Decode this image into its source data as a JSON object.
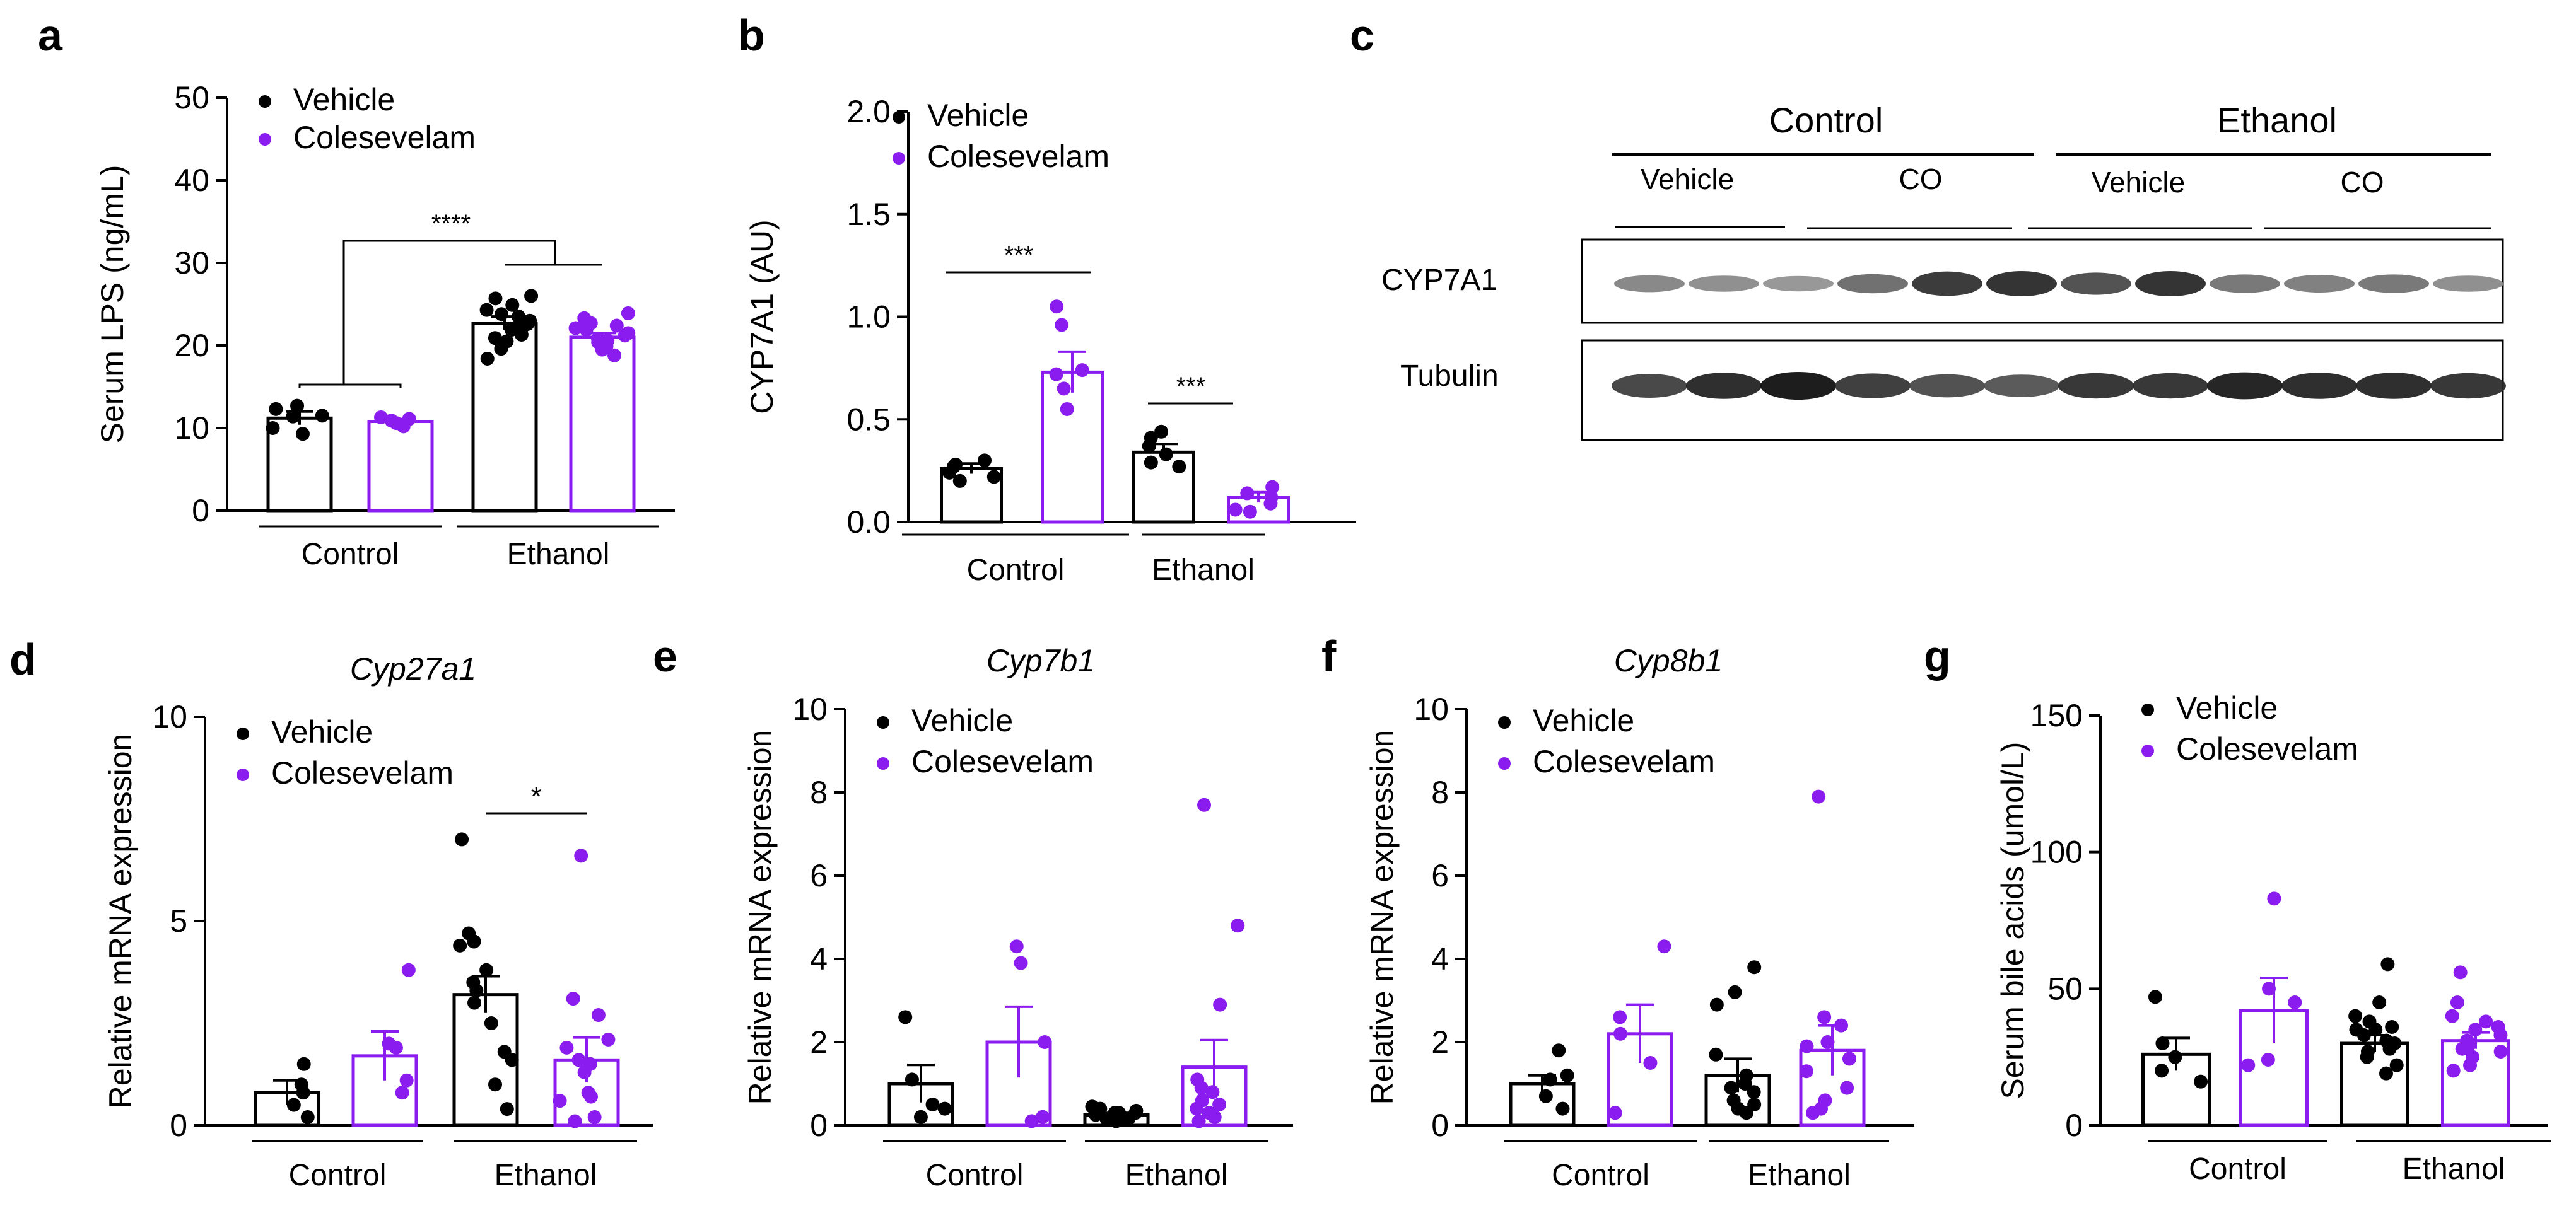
{
  "colors": {
    "vehicle": "#000000",
    "colesevelam": "#8b1cf0",
    "axis": "#000000"
  },
  "legend": {
    "vehicle": "Vehicle",
    "colesevelam": "Colesevelam"
  },
  "panel_letters": {
    "a": "a",
    "b": "b",
    "c": "c",
    "d": "d",
    "e": "e",
    "f": "f",
    "g": "g"
  },
  "chart_data": [
    {
      "panel": "a",
      "type": "bar",
      "title": "",
      "ylabel": "Serum LPS (ng/mL)",
      "ylim": [
        0,
        50
      ],
      "yticks": [
        "0",
        "10",
        "20",
        "30",
        "40",
        "50"
      ],
      "groups": [
        "Control",
        "Ethanol"
      ],
      "series": [
        {
          "name": "Vehicle",
          "values": [
            11.2,
            22.7
          ],
          "sem": [
            0.8,
            0.8
          ],
          "points": [
            [
              10.0,
              11.5,
              12.3,
              9.3,
              11.4,
              12.7
            ],
            [
              21.9,
              24.3,
              25.7,
              20.5,
              23.0,
              22.1,
              18.4,
              26.0,
              21.3,
              23.8,
              22.6,
              19.6,
              24.9,
              20.9,
              23.5
            ]
          ]
        },
        {
          "name": "Colesevelam",
          "values": [
            10.8,
            21.0
          ],
          "sem": [
            0.3,
            0.5
          ],
          "points": [
            [
              10.2,
              11.1,
              10.6,
              11.3,
              10.9
            ],
            [
              19.5,
              22.1,
              23.3,
              20.4,
              21.5,
              18.8,
              22.7,
              20.8,
              21.9,
              19.9,
              23.9,
              21.2,
              20.2,
              22.4,
              20.6
            ]
          ]
        }
      ],
      "significance": {
        "label": "****",
        "compare": "Control vs Ethanol"
      }
    },
    {
      "panel": "b",
      "type": "bar",
      "title": "",
      "ylabel": "CYP7A1 (AU)",
      "ylim": [
        0,
        2.0
      ],
      "yticks": [
        "0.0",
        "0.5",
        "1.0",
        "1.5",
        "2.0"
      ],
      "groups": [
        "Control",
        "Ethanol"
      ],
      "series": [
        {
          "name": "Vehicle",
          "values": [
            0.26,
            0.34
          ],
          "sem": [
            0.025,
            0.04
          ],
          "points": [
            [
              0.22,
              0.28,
              0.24,
              0.3,
              0.2,
              0.27
            ],
            [
              0.29,
              0.44,
              0.37,
              0.33,
              0.41,
              0.27
            ]
          ]
        },
        {
          "name": "Colesevelam",
          "values": [
            0.73,
            0.12
          ],
          "sem": [
            0.1,
            0.025
          ],
          "points": [
            [
              1.05,
              0.96,
              0.72,
              0.55,
              0.65,
              0.74
            ],
            [
              0.14,
              0.05,
              0.12,
              0.09,
              0.17,
              0.06
            ]
          ]
        }
      ],
      "significance": [
        {
          "label": "***",
          "group": "Control"
        },
        {
          "label": "***",
          "group": "Ethanol"
        }
      ]
    },
    {
      "panel": "d",
      "type": "bar",
      "title": "Cyp27a1",
      "ylabel": "Relative mRNA expression",
      "ylim": [
        0,
        10
      ],
      "yticks": [
        "0",
        "5",
        "10"
      ],
      "groups": [
        "Control",
        "Ethanol"
      ],
      "series": [
        {
          "name": "Vehicle",
          "values": [
            0.8,
            3.2
          ],
          "sem": [
            0.3,
            0.45
          ],
          "points": [
            [
              1.5,
              0.8,
              0.2,
              1.0,
              0.5
            ],
            [
              7.0,
              4.5,
              1.6,
              3.8,
              4.4,
              1.0,
              4.7,
              2.5,
              0.4,
              3.5,
              3.0,
              1.8,
              3.3,
              4.5
            ]
          ]
        },
        {
          "name": "Colesevelam",
          "values": [
            1.7,
            1.6
          ],
          "sem": [
            0.6,
            0.55
          ],
          "points": [
            [
              3.8,
              1.1,
              1.9,
              2.0,
              0.8
            ],
            [
              6.6,
              3.1,
              2.7,
              1.9,
              0.6,
              1.6,
              0.1,
              2.1,
              0.8,
              1.3,
              0.2,
              0.7,
              1.5
            ]
          ]
        }
      ],
      "significance": {
        "label": "*",
        "group": "Ethanol"
      }
    },
    {
      "panel": "e",
      "type": "bar",
      "title": "Cyp7b1",
      "ylabel": "Relative mRNA expression",
      "ylim": [
        0,
        10
      ],
      "yticks": [
        "0",
        "2",
        "4",
        "6",
        "8",
        "10"
      ],
      "groups": [
        "Control",
        "Ethanol"
      ],
      "series": [
        {
          "name": "Vehicle",
          "values": [
            1.0,
            0.25
          ],
          "sem": [
            0.45,
            0.05
          ],
          "points": [
            [
              2.6,
              0.5,
              1.1,
              0.2,
              0.4
            ],
            [
              0.35,
              0.2,
              0.3,
              0.45,
              0.15,
              0.25,
              0.1,
              0.3,
              0.4,
              0.2,
              0.15,
              0.3
            ]
          ]
        },
        {
          "name": "Colesevelam",
          "values": [
            2.0,
            1.4
          ],
          "sem": [
            0.85,
            0.65
          ],
          "points": [
            [
              4.3,
              3.9,
              0.2,
              2.0,
              0.1
            ],
            [
              7.7,
              4.8,
              2.9,
              0.9,
              0.5,
              0.3,
              1.1,
              0.2,
              0.4,
              0.1,
              0.6,
              0.8
            ]
          ]
        }
      ]
    },
    {
      "panel": "f",
      "type": "bar",
      "title": "Cyp8b1",
      "ylabel": "Relative mRNA expression",
      "ylim": [
        0,
        10
      ],
      "yticks": [
        "0",
        "2",
        "4",
        "6",
        "8",
        "10"
      ],
      "groups": [
        "Control",
        "Ethanol"
      ],
      "series": [
        {
          "name": "Vehicle",
          "values": [
            1.0,
            1.2
          ],
          "sem": [
            0.2,
            0.4
          ],
          "points": [
            [
              1.8,
              1.1,
              0.4,
              1.2,
              0.7
            ],
            [
              3.8,
              3.2,
              2.9,
              1.0,
              0.5,
              1.7,
              0.6,
              0.3,
              1.2,
              0.9,
              0.4,
              0.8
            ]
          ]
        },
        {
          "name": "Colesevelam",
          "values": [
            2.2,
            1.8
          ],
          "sem": [
            0.7,
            0.6
          ],
          "points": [
            [
              4.3,
              2.2,
              0.3,
              2.6,
              1.5
            ],
            [
              7.9,
              2.6,
              2.4,
              1.9,
              0.9,
              0.6,
              1.6,
              0.4,
              1.3,
              2.0,
              0.3
            ]
          ]
        }
      ]
    },
    {
      "panel": "g",
      "type": "bar",
      "title": "",
      "ylabel": "Serum bile acids (umol/L)",
      "ylim": [
        0,
        150
      ],
      "yticks": [
        "0",
        "50",
        "100",
        "150"
      ],
      "groups": [
        "Control",
        "Ethanol"
      ],
      "series": [
        {
          "name": "Vehicle",
          "values": [
            26,
            30
          ],
          "sem": [
            6,
            3
          ],
          "points": [
            [
              47,
              20,
              25,
              16,
              30
            ],
            [
              59,
              45,
              38,
              35,
              33,
              31,
              28,
              25,
              22,
              35,
              19,
              30,
              27,
              40,
              36
            ]
          ]
        },
        {
          "name": "Colesevelam",
          "values": [
            42,
            31
          ],
          "sem": [
            12,
            3
          ],
          "points": [
            [
              83,
              50,
              22,
              24,
              45
            ],
            [
              56,
              45,
              40,
              38,
              33,
              30,
              27,
              25,
              22,
              35,
              29,
              31,
              20,
              36,
              28
            ]
          ]
        }
      ]
    }
  ],
  "blot": {
    "groups": [
      "Control",
      "Ethanol"
    ],
    "subgroups": [
      "Vehicle",
      "CO",
      "Vehicle",
      "CO"
    ],
    "rows": [
      "CYP7A1",
      "Tubulin"
    ],
    "cyp7a1_intensity": [
      0.45,
      0.4,
      0.35,
      0.6,
      0.95,
      1.0,
      0.8,
      1.0,
      0.55,
      0.5,
      0.55,
      0.4
    ],
    "tubulin_intensity": [
      0.75,
      0.9,
      1.0,
      0.8,
      0.7,
      0.65,
      0.85,
      0.85,
      0.95,
      0.9,
      0.9,
      0.85
    ]
  }
}
